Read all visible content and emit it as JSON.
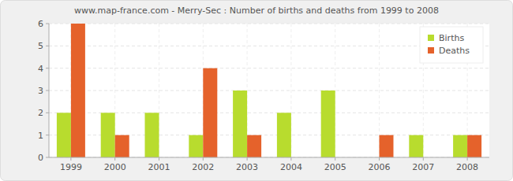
{
  "chart_data": {
    "type": "bar",
    "title": "www.map-france.com - Merry-Sec : Number of births and deaths from 1999 to 2008",
    "categories": [
      "1999",
      "2000",
      "2001",
      "2002",
      "2003",
      "2004",
      "2005",
      "2006",
      "2007",
      "2008"
    ],
    "series": [
      {
        "name": "Births",
        "color": "#b8dc2e",
        "values": [
          2,
          2,
          2,
          1,
          3,
          2,
          3,
          0,
          1,
          1
        ]
      },
      {
        "name": "Deaths",
        "color": "#e5622b",
        "values": [
          6,
          1,
          0,
          4,
          1,
          0,
          0,
          1,
          0,
          1
        ]
      }
    ],
    "ylim": [
      0,
      6
    ],
    "yticks": [
      0,
      1,
      2,
      3,
      4,
      5,
      6
    ],
    "grid": true,
    "legend": "top-right"
  }
}
